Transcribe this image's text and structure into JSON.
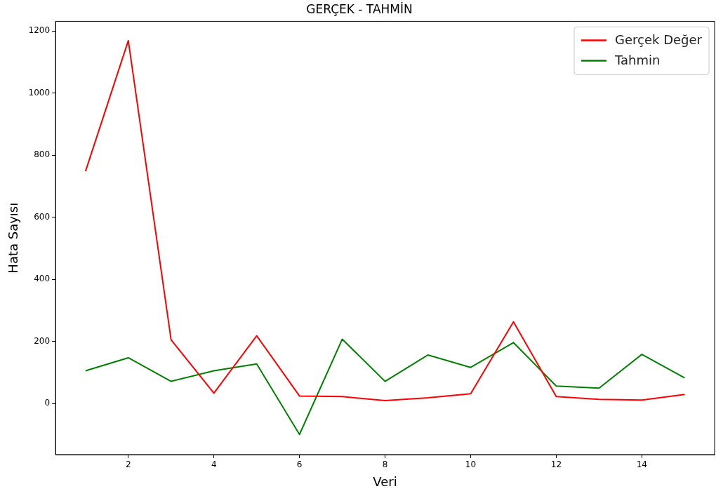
{
  "chart_data": {
    "type": "line",
    "title": "GERÇEK - TAHMİN",
    "xlabel": "Veri",
    "ylabel": "Hata Sayısı",
    "x": [
      1,
      2,
      3,
      4,
      5,
      6,
      7,
      8,
      9,
      10,
      11,
      12,
      13,
      14,
      15
    ],
    "series": [
      {
        "name": "Gerçek Değer",
        "color": "#ff0000",
        "values": [
          748,
          1169,
          205,
          33,
          218,
          24,
          22,
          9,
          18,
          31,
          263,
          22,
          13,
          11,
          29
        ]
      },
      {
        "name": "Tahmin",
        "color": "#008000",
        "values": [
          105,
          147,
          71,
          105,
          127,
          -100,
          207,
          71,
          156,
          116,
          196,
          56,
          49,
          158,
          82
        ]
      }
    ],
    "xlim": [
      0.3,
      15.7
    ],
    "xticks": [
      2,
      4,
      6,
      8,
      10,
      12,
      14
    ],
    "ylim": [
      -165,
      1231
    ],
    "yticks": [
      0,
      200,
      400,
      600,
      800,
      1000,
      1200
    ],
    "grid": false,
    "legend": "top right",
    "marker": "none",
    "line_style": "solid"
  }
}
